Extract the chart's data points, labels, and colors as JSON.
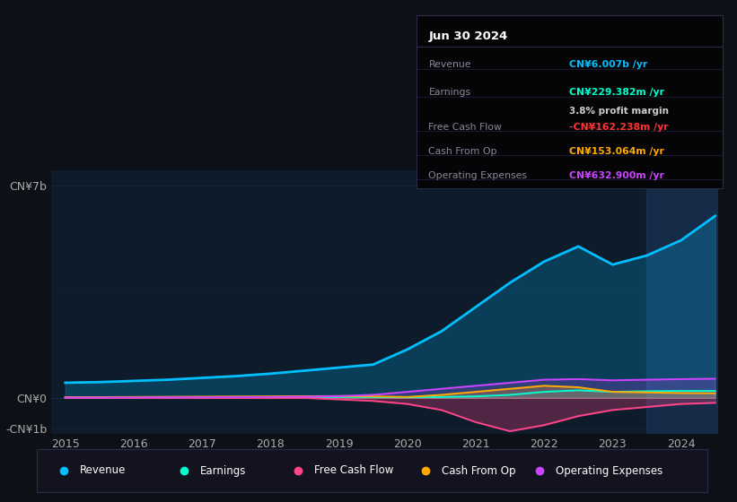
{
  "bg_color": "#0d1117",
  "plot_bg_color": "#0d1b2a",
  "grid_color": "#1e3050",
  "text_color": "#aaaaaa",
  "ylim": [
    -1200000000.0,
    7500000000.0
  ],
  "years_x": [
    2015.0,
    2015.5,
    2016.0,
    2016.5,
    2017.0,
    2017.5,
    2018.0,
    2018.5,
    2019.0,
    2019.5,
    2020.0,
    2020.5,
    2021.0,
    2021.5,
    2022.0,
    2022.5,
    2023.0,
    2023.5,
    2024.0,
    2024.5
  ],
  "revenue": [
    500000000.0,
    520000000.0,
    560000000.0,
    600000000.0,
    660000000.0,
    720000000.0,
    800000000.0,
    900000000.0,
    1000000000.0,
    1100000000.0,
    1600000000.0,
    2200000000.0,
    3000000000.0,
    3800000000.0,
    4500000000.0,
    5000000000.0,
    4400000000.0,
    4700000000.0,
    5200000000.0,
    6007000000.0
  ],
  "earnings": [
    10000000.0,
    12000000.0,
    15000000.0,
    18000000.0,
    20000000.0,
    22000000.0,
    25000000.0,
    28000000.0,
    30000000.0,
    25000000.0,
    20000000.0,
    30000000.0,
    50000000.0,
    100000000.0,
    200000000.0,
    250000000.0,
    200000000.0,
    220000000.0,
    230000000.0,
    229382000.0
  ],
  "free_cash_flow": [
    0,
    0,
    0,
    0,
    0,
    0,
    0,
    0,
    -50000000.0,
    -100000000.0,
    -200000000.0,
    -400000000.0,
    -800000000.0,
    -1100000000.0,
    -900000000.0,
    -600000000.0,
    -400000000.0,
    -300000000.0,
    -200000000.0,
    -162238000.0
  ],
  "cash_from_op": [
    20000000.0,
    25000000.0,
    30000000.0,
    35000000.0,
    40000000.0,
    45000000.0,
    50000000.0,
    55000000.0,
    60000000.0,
    50000000.0,
    30000000.0,
    100000000.0,
    200000000.0,
    300000000.0,
    400000000.0,
    350000000.0,
    200000000.0,
    180000000.0,
    160000000.0,
    153064000.0
  ],
  "operating_expenses": [
    10000000.0,
    12000000.0,
    15000000.0,
    18000000.0,
    20000000.0,
    25000000.0,
    30000000.0,
    40000000.0,
    60000000.0,
    100000000.0,
    200000000.0,
    300000000.0,
    400000000.0,
    500000000.0,
    600000000.0,
    620000000.0,
    580000000.0,
    600000000.0,
    620000000.0,
    632900000.0
  ],
  "revenue_color": "#00bfff",
  "earnings_color": "#00ffcc",
  "fcf_color": "#ff4488",
  "cashfromop_color": "#ffaa00",
  "opex_color": "#cc44ff",
  "legend_bg": "#131320",
  "tooltip_bg": "#050508",
  "highlight_x_start": 2023.5,
  "highlight_x_end": 2024.55,
  "xlim": [
    2014.8,
    2024.55
  ],
  "xtick_locs": [
    2015,
    2016,
    2017,
    2018,
    2019,
    2020,
    2021,
    2022,
    2023,
    2024
  ]
}
